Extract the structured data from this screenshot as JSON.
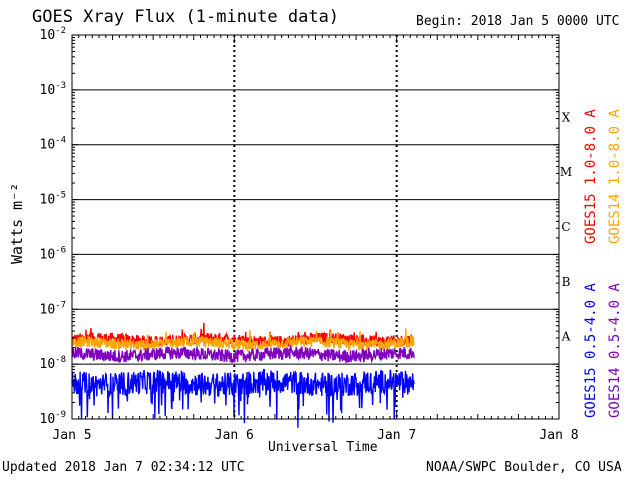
{
  "header": {
    "title": "GOES Xray Flux (1-minute data)",
    "begin": "Begin:  2018 Jan 5 0000 UTC"
  },
  "footer": {
    "updated": "Updated 2018 Jan  7 02:34:12 UTC",
    "credit": "NOAA/SWPC Boulder, CO USA"
  },
  "colors": {
    "goes15_long": "#ff0000",
    "goes14_long": "#ffa500",
    "goes15_short": "#0000ff",
    "goes14_short": "#8000c0",
    "grid": "#000000",
    "background": "#ffffff"
  },
  "chart_data": {
    "type": "line",
    "xlabel": "Universal Time",
    "ylabel": "Watts m⁻²",
    "yscale": "log",
    "ylim": [
      1e-09,
      0.01
    ],
    "xlim_days": [
      0,
      3
    ],
    "x_ticks": [
      "Jan 5",
      "Jan 6",
      "Jan 7",
      "Jan 8"
    ],
    "y_ticks": [
      {
        "base": "10",
        "exp": "-2"
      },
      {
        "base": "10",
        "exp": "-3"
      },
      {
        "base": "10",
        "exp": "-4"
      },
      {
        "base": "10",
        "exp": "-5"
      },
      {
        "base": "10",
        "exp": "-6"
      },
      {
        "base": "10",
        "exp": "-7"
      },
      {
        "base": "10",
        "exp": "-8"
      },
      {
        "base": "10",
        "exp": "-9"
      }
    ],
    "flare_classes": [
      {
        "label": "X",
        "flux": 0.0001
      },
      {
        "label": "M",
        "flux": 1e-05
      },
      {
        "label": "C",
        "flux": 1e-06
      },
      {
        "label": "B",
        "flux": 1e-07
      },
      {
        "label": "A",
        "flux": 1e-08
      }
    ],
    "data_end_day": 2.107,
    "series": [
      {
        "name": "GOES15 1.0-8.0 A",
        "color": "#ff0000",
        "base_flux": 2.8e-08,
        "noise": 0.1
      },
      {
        "name": "GOES14 1.0-8.0 A",
        "color": "#ffa500",
        "base_flux": 2.4e-08,
        "noise": 0.1
      },
      {
        "name": "GOES14 0.5-4.0 A",
        "color": "#8000c0",
        "base_flux": 1.5e-08,
        "noise": 0.12
      },
      {
        "name": "GOES15 0.5-4.0 A",
        "color": "#0000ff",
        "base_flux": 4.5e-09,
        "noise": 0.22
      }
    ]
  }
}
